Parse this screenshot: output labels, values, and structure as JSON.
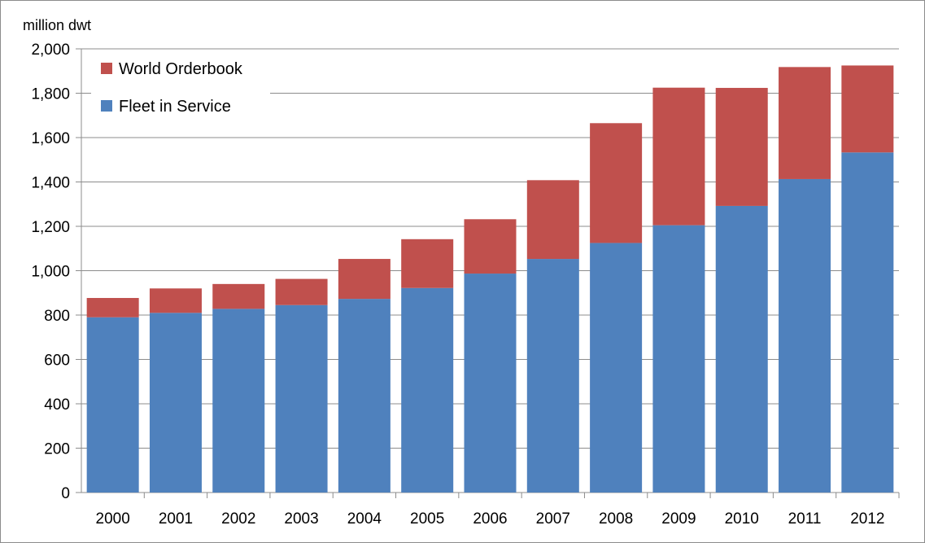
{
  "chart_data": {
    "type": "bar",
    "stacked": true,
    "unit_label": "million dwt",
    "categories": [
      "2000",
      "2001",
      "2002",
      "2003",
      "2004",
      "2005",
      "2006",
      "2007",
      "2008",
      "2009",
      "2010",
      "2011",
      "2012"
    ],
    "series": [
      {
        "name": "Fleet in Service",
        "color": "#4F81BD",
        "values": [
          790,
          810,
          828,
          845,
          873,
          922,
          987,
          1053,
          1125,
          1205,
          1292,
          1413,
          1533
        ]
      },
      {
        "name": "World Orderbook",
        "color": "#C0504D",
        "values": [
          87,
          110,
          112,
          118,
          180,
          220,
          245,
          355,
          540,
          620,
          532,
          505,
          392
        ]
      }
    ],
    "ylim": [
      0,
      2000
    ],
    "yticks": [
      0,
      200,
      400,
      600,
      800,
      1000,
      1200,
      1400,
      1600,
      1800,
      2000
    ],
    "ytick_labels": [
      "0",
      "200",
      "400",
      "600",
      "800",
      "1,000",
      "1,200",
      "1,400",
      "1,600",
      "1,800",
      "2,000"
    ],
    "grid": true,
    "legend_position": "top-left",
    "legend_order": [
      "World Orderbook",
      "Fleet in Service"
    ]
  }
}
